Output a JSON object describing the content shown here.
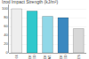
{
  "chart_data": {
    "type": "bar",
    "title": "Izod Impact Strength (kJ/m²)",
    "categories": [
      "Nylon 66",
      "PEEK\nMOULDED",
      "PEEK\nAROMAT.",
      "PEEK\nFILLED",
      "PES"
    ],
    "values": [
      100,
      95,
      83,
      80,
      55
    ],
    "colors": [
      "#eeeeee",
      "#30c8cc",
      "#90d8e8",
      "#3a88c0",
      "#d8d8d8"
    ],
    "ylim": [
      0,
      110
    ],
    "yticks": [
      0,
      20,
      40,
      60,
      80,
      100
    ],
    "grid": true
  }
}
